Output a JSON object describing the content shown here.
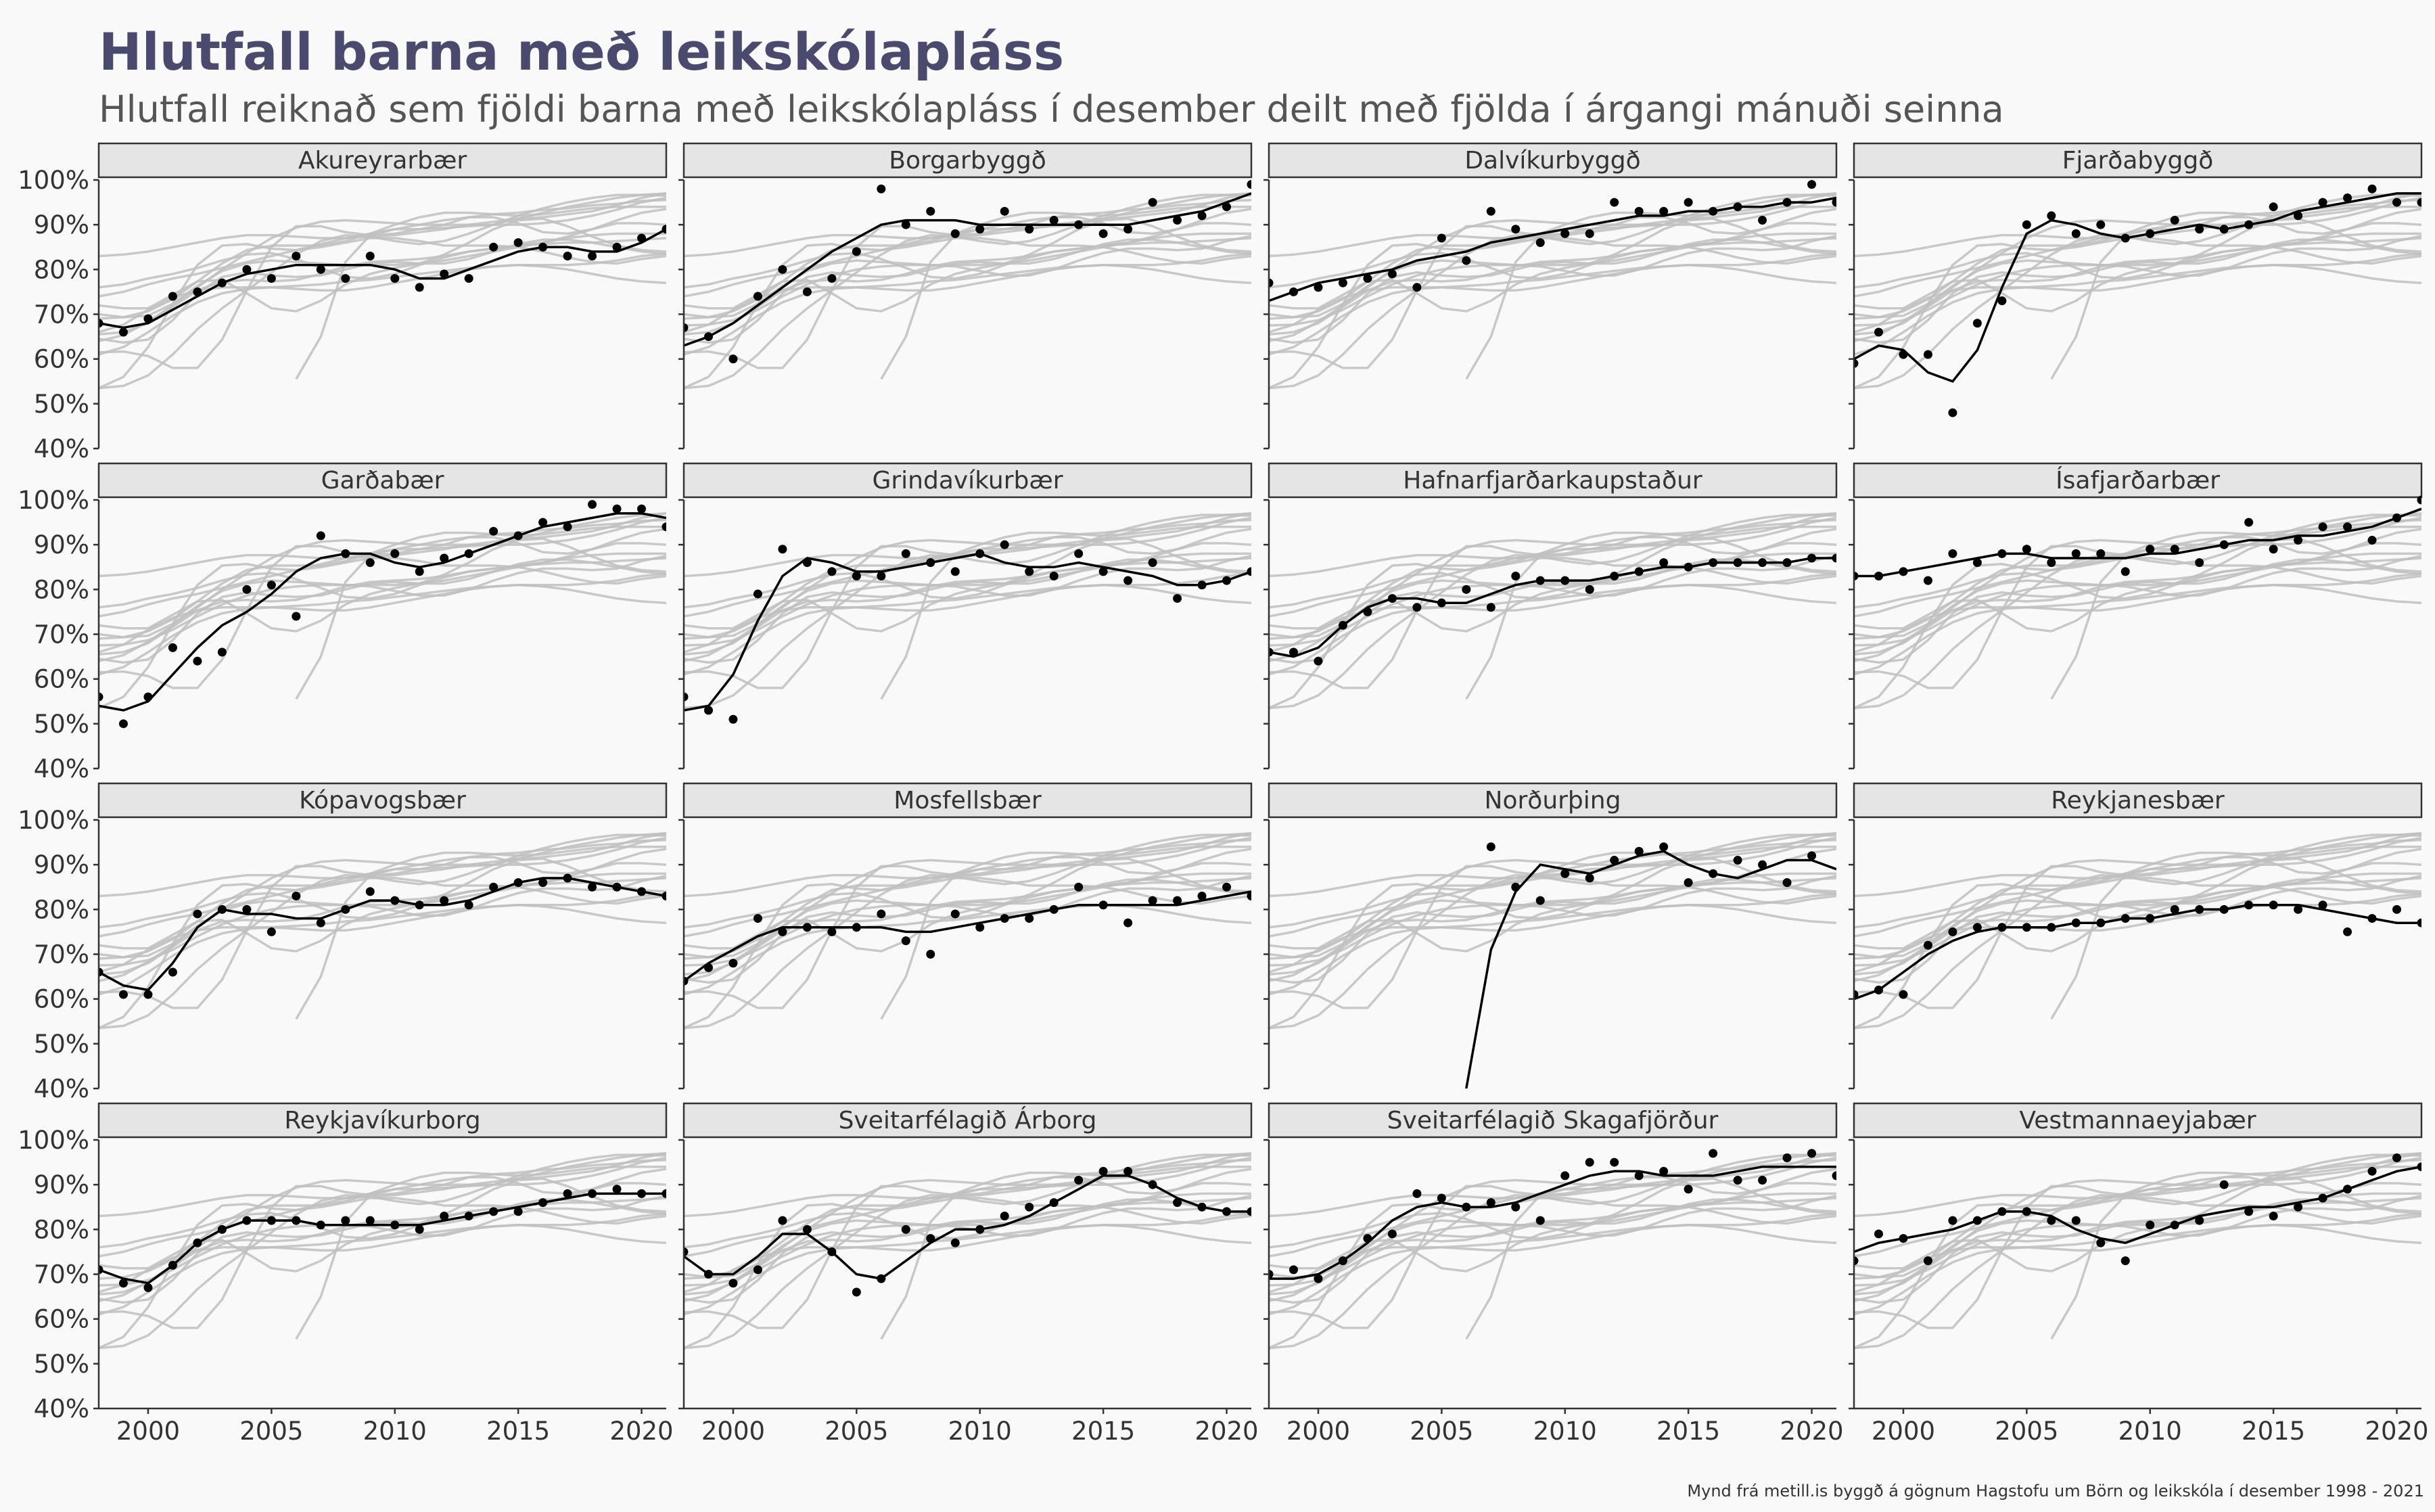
{
  "title": "Hlutfall barna með leikskólapláss",
  "subtitle": "Hlutfall reiknað sem fjöldi barna með leikskólapláss í desember deilt með fjölda í árgangi mánuði seinna",
  "caption": "Mynd frá metill.is byggð á gögnum Hagstofu um Börn og leikskóla í desember 1998 - 2021",
  "colors": {
    "background": "#f9f9f9",
    "strip_fill": "#e5e5e5",
    "highlight": "#000000",
    "context_lines": "#bfbfbf",
    "title": "#4a4a6e"
  },
  "chart_data": {
    "type": "line",
    "facet_layout": "4x4 grid",
    "x_label_years": [
      1998,
      1999,
      2000,
      2001,
      2002,
      2003,
      2004,
      2005,
      2006,
      2007,
      2008,
      2009,
      2010,
      2011,
      2012,
      2013,
      2014,
      2015,
      2016,
      2017,
      2018,
      2019,
      2020,
      2021
    ],
    "x_ticks": [
      2000,
      2005,
      2010,
      2015,
      2020
    ],
    "x_tick_labels": [
      "2000",
      "2005",
      "2010",
      "2015",
      "2020"
    ],
    "xlim": [
      1998,
      2021
    ],
    "ylim": [
      40,
      100
    ],
    "y_ticks": [
      40,
      50,
      60,
      70,
      80,
      90,
      100
    ],
    "y_tick_labels": [
      "40%",
      "50%",
      "60%",
      "70%",
      "80%",
      "90%",
      "100%"
    ],
    "encoding": "each panel highlights one municipality (black smoothed line + black points = yearly values); other municipalities' smoothed lines drawn in grey",
    "panels": [
      {
        "name": "Akureyrarbær",
        "points": [
          68,
          66,
          69,
          74,
          75,
          77,
          80,
          78,
          83,
          80,
          78,
          83,
          78,
          76,
          79,
          78,
          85,
          86,
          85,
          83,
          83,
          85,
          87,
          89
        ],
        "trend": [
          68,
          67,
          68,
          71,
          74,
          77,
          79,
          80,
          81,
          81,
          81,
          81,
          80,
          78,
          78,
          80,
          82,
          84,
          85,
          85,
          84,
          84,
          86,
          89
        ]
      },
      {
        "name": "Borgarbyggð",
        "points": [
          67,
          65,
          60,
          74,
          80,
          75,
          78,
          84,
          98,
          90,
          93,
          88,
          89,
          93,
          89,
          91,
          90,
          88,
          89,
          95,
          91,
          92,
          94,
          99
        ],
        "trend": [
          63,
          65,
          68,
          72,
          76,
          80,
          84,
          87,
          90,
          91,
          91,
          91,
          90,
          90,
          90,
          90,
          90,
          90,
          90,
          91,
          92,
          93,
          95,
          97
        ]
      },
      {
        "name": "Dalvíkurbyggð",
        "points": [
          77,
          75,
          76,
          77,
          78,
          79,
          76,
          87,
          82,
          93,
          89,
          86,
          88,
          88,
          95,
          93,
          93,
          95,
          93,
          94,
          91,
          95,
          99,
          95
        ],
        "trend": [
          73,
          75,
          77,
          78,
          79,
          80,
          82,
          83,
          84,
          86,
          87,
          88,
          89,
          90,
          91,
          92,
          92,
          93,
          93,
          94,
          94,
          95,
          95,
          96
        ]
      },
      {
        "name": "Fjarðabyggð",
        "points": [
          59,
          66,
          61,
          61,
          48,
          68,
          73,
          90,
          92,
          88,
          90,
          87,
          88,
          91,
          89,
          89,
          90,
          94,
          92,
          95,
          96,
          98,
          95,
          95
        ],
        "trend": [
          60,
          63,
          62,
          57,
          55,
          62,
          76,
          88,
          91,
          90,
          88,
          87,
          88,
          89,
          90,
          89,
          90,
          91,
          93,
          94,
          95,
          96,
          97,
          97
        ]
      },
      {
        "name": "Garðabær",
        "points": [
          56,
          50,
          56,
          67,
          64,
          66,
          80,
          81,
          74,
          92,
          88,
          86,
          88,
          84,
          87,
          88,
          93,
          92,
          95,
          94,
          99,
          98,
          98,
          94
        ],
        "trend": [
          54,
          53,
          55,
          61,
          67,
          72,
          75,
          79,
          84,
          87,
          88,
          88,
          86,
          85,
          86,
          88,
          90,
          92,
          94,
          95,
          96,
          97,
          97,
          96
        ]
      },
      {
        "name": "Grindavíkurbær",
        "points": [
          56,
          53,
          51,
          79,
          89,
          86,
          84,
          83,
          83,
          88,
          86,
          84,
          88,
          90,
          84,
          83,
          88,
          84,
          82,
          86,
          78,
          81,
          82,
          84
        ],
        "trend": [
          53,
          54,
          61,
          73,
          83,
          87,
          86,
          84,
          84,
          85,
          86,
          87,
          88,
          86,
          85,
          85,
          86,
          85,
          84,
          83,
          81,
          81,
          82,
          84
        ]
      },
      {
        "name": "Hafnarfjarðarkaupstaður",
        "points": [
          66,
          66,
          64,
          72,
          75,
          78,
          76,
          77,
          80,
          76,
          83,
          82,
          82,
          80,
          83,
          84,
          86,
          85,
          86,
          86,
          86,
          86,
          87,
          87
        ],
        "trend": [
          66,
          65,
          67,
          72,
          76,
          78,
          78,
          77,
          77,
          79,
          81,
          82,
          82,
          82,
          83,
          84,
          85,
          85,
          86,
          86,
          86,
          86,
          87,
          87
        ]
      },
      {
        "name": "Ísafjarðarbær",
        "points": [
          83,
          83,
          84,
          82,
          88,
          86,
          88,
          89,
          86,
          88,
          88,
          84,
          89,
          89,
          86,
          90,
          95,
          89,
          91,
          94,
          94,
          91,
          96,
          100
        ],
        "trend": [
          83,
          83,
          84,
          85,
          86,
          87,
          88,
          88,
          87,
          87,
          87,
          87,
          88,
          88,
          89,
          90,
          91,
          91,
          92,
          92,
          93,
          94,
          96,
          98
        ]
      },
      {
        "name": "Kópavogsbær",
        "points": [
          66,
          61,
          61,
          66,
          79,
          80,
          80,
          75,
          83,
          77,
          80,
          84,
          82,
          81,
          82,
          81,
          85,
          86,
          86,
          87,
          85,
          85,
          84,
          83
        ],
        "trend": [
          66,
          63,
          62,
          68,
          76,
          80,
          79,
          79,
          78,
          78,
          80,
          82,
          82,
          81,
          81,
          82,
          84,
          86,
          87,
          87,
          86,
          85,
          84,
          83
        ]
      },
      {
        "name": "Mosfellsbær",
        "points": [
          64,
          67,
          68,
          78,
          75,
          76,
          75,
          76,
          79,
          73,
          70,
          79,
          76,
          78,
          78,
          80,
          85,
          81,
          77,
          82,
          82,
          83,
          85,
          83
        ],
        "trend": [
          64,
          68,
          71,
          74,
          76,
          76,
          76,
          76,
          76,
          75,
          75,
          76,
          77,
          78,
          79,
          80,
          81,
          81,
          81,
          81,
          81,
          82,
          83,
          84
        ]
      },
      {
        "name": "Norðurþing",
        "points": [
          null,
          null,
          null,
          null,
          null,
          null,
          null,
          null,
          null,
          94,
          85,
          82,
          88,
          87,
          91,
          93,
          94,
          86,
          88,
          91,
          90,
          86,
          92,
          null
        ],
        "trend": [
          null,
          null,
          null,
          null,
          null,
          null,
          null,
          null,
          40,
          71,
          84,
          90,
          89,
          88,
          90,
          92,
          93,
          90,
          88,
          87,
          89,
          91,
          91,
          89
        ]
      },
      {
        "name": "Reykjanesbær",
        "points": [
          61,
          62,
          61,
          72,
          75,
          76,
          76,
          76,
          76,
          77,
          77,
          78,
          78,
          80,
          80,
          80,
          81,
          81,
          80,
          81,
          75,
          78,
          80,
          77
        ],
        "trend": [
          60,
          62,
          66,
          70,
          73,
          75,
          76,
          76,
          76,
          77,
          77,
          78,
          78,
          79,
          80,
          80,
          81,
          81,
          81,
          80,
          79,
          78,
          77,
          77
        ]
      },
      {
        "name": "Reykjavíkurborg",
        "points": [
          71,
          68,
          67,
          72,
          77,
          80,
          82,
          82,
          82,
          81,
          82,
          82,
          81,
          80,
          83,
          83,
          84,
          84,
          86,
          88,
          88,
          89,
          88,
          88
        ],
        "trend": [
          71,
          69,
          68,
          72,
          77,
          80,
          82,
          82,
          82,
          81,
          81,
          81,
          81,
          81,
          82,
          83,
          84,
          85,
          86,
          87,
          88,
          88,
          88,
          88
        ]
      },
      {
        "name": "Sveitarfélagið Árborg",
        "points": [
          75,
          70,
          68,
          71,
          82,
          80,
          75,
          66,
          69,
          80,
          78,
          77,
          80,
          83,
          85,
          86,
          91,
          93,
          93,
          90,
          86,
          85,
          84,
          84
        ],
        "trend": [
          74,
          70,
          70,
          74,
          79,
          79,
          75,
          70,
          69,
          73,
          77,
          80,
          80,
          81,
          83,
          86,
          89,
          92,
          92,
          90,
          87,
          85,
          84,
          84
        ]
      },
      {
        "name": "Sveitarfélagið Skagafjörður",
        "points": [
          70,
          71,
          69,
          73,
          78,
          79,
          88,
          87,
          85,
          86,
          85,
          82,
          92,
          95,
          95,
          92,
          93,
          89,
          97,
          91,
          91,
          96,
          97,
          92
        ],
        "trend": [
          69,
          69,
          70,
          73,
          77,
          82,
          85,
          86,
          85,
          85,
          86,
          88,
          90,
          92,
          93,
          93,
          92,
          92,
          92,
          93,
          94,
          94,
          94,
          94
        ]
      },
      {
        "name": "Vestmannaeyjabær",
        "points": [
          73,
          79,
          78,
          73,
          82,
          82,
          84,
          84,
          82,
          82,
          77,
          73,
          81,
          81,
          82,
          90,
          84,
          83,
          85,
          87,
          89,
          93,
          96,
          94
        ],
        "trend": [
          75,
          77,
          78,
          79,
          80,
          82,
          84,
          84,
          83,
          80,
          78,
          77,
          79,
          81,
          83,
          84,
          85,
          85,
          86,
          87,
          89,
          91,
          93,
          94
        ]
      }
    ]
  }
}
